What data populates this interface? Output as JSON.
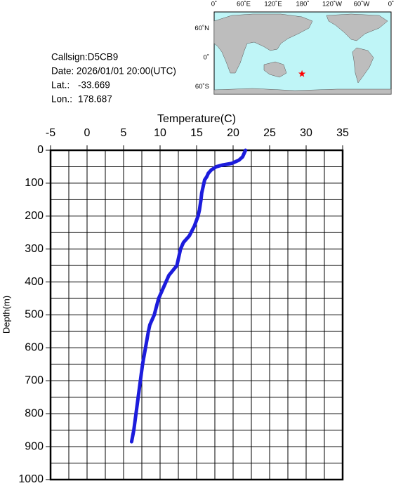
{
  "chart_data": {
    "type": "line",
    "x_label": "Temperature(C)",
    "y_label": "Depth(m)",
    "xlim": [
      -5,
      35
    ],
    "xticks": [
      -5,
      0,
      5,
      10,
      15,
      20,
      25,
      30,
      35
    ],
    "xminorticks": [
      -2.5,
      2.5,
      7.5,
      12.5,
      17.5,
      22.5,
      27.5,
      32.5
    ],
    "ylim": [
      0,
      1000
    ],
    "yticks": [
      0,
      100,
      200,
      300,
      400,
      500,
      600,
      700,
      800,
      900,
      1000
    ],
    "yminorticks": [
      50,
      150,
      250,
      350,
      450,
      550,
      650,
      750,
      850,
      950
    ],
    "y_inverted": true,
    "grid": true,
    "color": "#1c1cdc",
    "y": [
      0,
      10,
      20,
      30,
      40,
      45,
      50,
      60,
      70,
      80,
      90,
      100,
      130,
      150,
      180,
      200,
      230,
      260,
      280,
      300,
      350,
      380,
      400,
      450,
      500,
      530,
      550,
      600,
      650,
      700,
      750,
      800,
      850,
      885
    ],
    "values": [
      21.7,
      21.5,
      21.3,
      20.8,
      19.8,
      18.5,
      17.7,
      17.0,
      16.6,
      16.4,
      16.1,
      16.0,
      15.7,
      15.6,
      15.4,
      15.2,
      14.7,
      14.0,
      13.2,
      12.8,
      12.3,
      11.2,
      10.8,
      9.8,
      9.2,
      8.6,
      8.4,
      8.0,
      7.6,
      7.3,
      7.0,
      6.7,
      6.4,
      6.1
    ]
  },
  "info": {
    "callsign": "Callsign:D5CB9",
    "date": "Date:  2026/01/01 20:00(UTC)",
    "lat_label": "Lat.:",
    "lat": -33.669,
    "lon_label": "Lon.:",
    "lon": 178.687
  },
  "map": {
    "lon_labels": [
      "0˚",
      "60˚E",
      "120˚E",
      "180˚",
      "120˚W",
      "60˚W",
      "0˚"
    ],
    "lat_labels": [
      "60˚N",
      "0˚",
      "60˚S"
    ],
    "marker_color": "#ff0000"
  }
}
